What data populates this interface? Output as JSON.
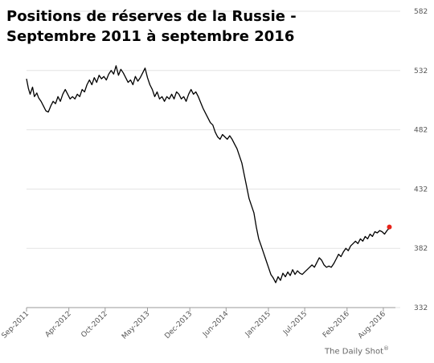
{
  "chart_data": {
    "type": "line",
    "title": "Positions de réserves de la Russie - Septembre 2011 à septembre 2016",
    "xlabel": "",
    "ylabel": "",
    "ylim": [
      332,
      582
    ],
    "y_ticks": [
      332,
      382,
      432,
      482,
      532,
      582
    ],
    "y_axis_position": "right",
    "grid": "horizontal",
    "x_ticks": [
      {
        "label": "Sep-2011",
        "t": 0
      },
      {
        "label": "Apr-2012",
        "t": 7
      },
      {
        "label": "Oct-2012",
        "t": 13
      },
      {
        "label": "May-2013",
        "t": 20
      },
      {
        "label": "Dec-2013",
        "t": 27
      },
      {
        "label": "Jun-2014",
        "t": 33
      },
      {
        "label": "Jan-2015",
        "t": 40
      },
      {
        "label": "Jul-2015",
        "t": 46
      },
      {
        "label": "Feb-2016",
        "t": 53
      },
      {
        "label": "Aug-2016",
        "t": 59
      }
    ],
    "x_range_months": [
      0,
      61
    ],
    "series": [
      {
        "color": "#000000",
        "points": [
          [
            0.0,
            525
          ],
          [
            0.3,
            517
          ],
          [
            0.6,
            512
          ],
          [
            1.0,
            518
          ],
          [
            1.3,
            510
          ],
          [
            1.7,
            513
          ],
          [
            2.0,
            509
          ],
          [
            2.4,
            506
          ],
          [
            2.8,
            502
          ],
          [
            3.2,
            498
          ],
          [
            3.6,
            497
          ],
          [
            4.0,
            502
          ],
          [
            4.4,
            506
          ],
          [
            4.8,
            504
          ],
          [
            5.2,
            510
          ],
          [
            5.6,
            506
          ],
          [
            6.0,
            512
          ],
          [
            6.4,
            516
          ],
          [
            6.8,
            512
          ],
          [
            7.2,
            508
          ],
          [
            7.6,
            510
          ],
          [
            8.0,
            508
          ],
          [
            8.4,
            512
          ],
          [
            8.8,
            510
          ],
          [
            9.2,
            516
          ],
          [
            9.6,
            514
          ],
          [
            10.0,
            520
          ],
          [
            10.4,
            524
          ],
          [
            10.8,
            520
          ],
          [
            11.2,
            526
          ],
          [
            11.6,
            522
          ],
          [
            12.0,
            528
          ],
          [
            12.4,
            525
          ],
          [
            12.8,
            527
          ],
          [
            13.2,
            524
          ],
          [
            13.6,
            529
          ],
          [
            14.0,
            532
          ],
          [
            14.4,
            529
          ],
          [
            14.8,
            536
          ],
          [
            15.2,
            528
          ],
          [
            15.6,
            533
          ],
          [
            16.0,
            530
          ],
          [
            16.4,
            526
          ],
          [
            16.8,
            522
          ],
          [
            17.2,
            524
          ],
          [
            17.6,
            520
          ],
          [
            18.0,
            527
          ],
          [
            18.4,
            523
          ],
          [
            18.8,
            526
          ],
          [
            19.2,
            530
          ],
          [
            19.6,
            534
          ],
          [
            20.0,
            526
          ],
          [
            20.4,
            520
          ],
          [
            20.8,
            516
          ],
          [
            21.2,
            510
          ],
          [
            21.6,
            514
          ],
          [
            22.0,
            508
          ],
          [
            22.4,
            510
          ],
          [
            22.8,
            506
          ],
          [
            23.2,
            510
          ],
          [
            23.6,
            508
          ],
          [
            24.0,
            512
          ],
          [
            24.4,
            508
          ],
          [
            24.8,
            514
          ],
          [
            25.2,
            512
          ],
          [
            25.6,
            508
          ],
          [
            26.0,
            510
          ],
          [
            26.4,
            506
          ],
          [
            26.8,
            512
          ],
          [
            27.2,
            516
          ],
          [
            27.6,
            512
          ],
          [
            28.0,
            514
          ],
          [
            28.4,
            510
          ],
          [
            28.8,
            505
          ],
          [
            29.2,
            500
          ],
          [
            29.6,
            496
          ],
          [
            30.0,
            492
          ],
          [
            30.4,
            488
          ],
          [
            30.8,
            486
          ],
          [
            31.2,
            480
          ],
          [
            31.6,
            476
          ],
          [
            32.0,
            474
          ],
          [
            32.4,
            478
          ],
          [
            32.8,
            476
          ],
          [
            33.2,
            474
          ],
          [
            33.6,
            477
          ],
          [
            34.0,
            474
          ],
          [
            34.4,
            470
          ],
          [
            34.8,
            466
          ],
          [
            35.2,
            460
          ],
          [
            35.6,
            454
          ],
          [
            36.0,
            444
          ],
          [
            36.4,
            434
          ],
          [
            36.8,
            424
          ],
          [
            37.2,
            418
          ],
          [
            37.6,
            412
          ],
          [
            38.0,
            400
          ],
          [
            38.4,
            390
          ],
          [
            38.8,
            384
          ],
          [
            39.2,
            378
          ],
          [
            39.6,
            372
          ],
          [
            40.0,
            366
          ],
          [
            40.4,
            360
          ],
          [
            40.8,
            357
          ],
          [
            41.2,
            353
          ],
          [
            41.6,
            358
          ],
          [
            42.0,
            355
          ],
          [
            42.4,
            361
          ],
          [
            42.8,
            358
          ],
          [
            43.2,
            362
          ],
          [
            43.6,
            359
          ],
          [
            44.0,
            364
          ],
          [
            44.4,
            360
          ],
          [
            44.8,
            363
          ],
          [
            45.2,
            361
          ],
          [
            45.6,
            360
          ],
          [
            46.0,
            362
          ],
          [
            46.4,
            364
          ],
          [
            46.8,
            366
          ],
          [
            47.2,
            368
          ],
          [
            47.6,
            366
          ],
          [
            48.0,
            370
          ],
          [
            48.4,
            374
          ],
          [
            48.8,
            372
          ],
          [
            49.2,
            368
          ],
          [
            49.6,
            366
          ],
          [
            50.0,
            367
          ],
          [
            50.4,
            366
          ],
          [
            50.8,
            369
          ],
          [
            51.2,
            373
          ],
          [
            51.6,
            377
          ],
          [
            52.0,
            375
          ],
          [
            52.4,
            379
          ],
          [
            52.8,
            382
          ],
          [
            53.2,
            380
          ],
          [
            53.6,
            384
          ],
          [
            54.0,
            386
          ],
          [
            54.4,
            388
          ],
          [
            54.8,
            386
          ],
          [
            55.2,
            390
          ],
          [
            55.6,
            388
          ],
          [
            56.0,
            392
          ],
          [
            56.4,
            390
          ],
          [
            56.8,
            394
          ],
          [
            57.2,
            392
          ],
          [
            57.6,
            396
          ],
          [
            58.0,
            395
          ],
          [
            58.4,
            397
          ],
          [
            58.8,
            396
          ],
          [
            59.2,
            394
          ],
          [
            59.6,
            397
          ],
          [
            60.0,
            399
          ]
        ],
        "end_marker": {
          "t": 60.0,
          "value": 400,
          "color": "#e8231a"
        }
      }
    ]
  },
  "source_text": "The Daily Shot",
  "source_mark": "®"
}
